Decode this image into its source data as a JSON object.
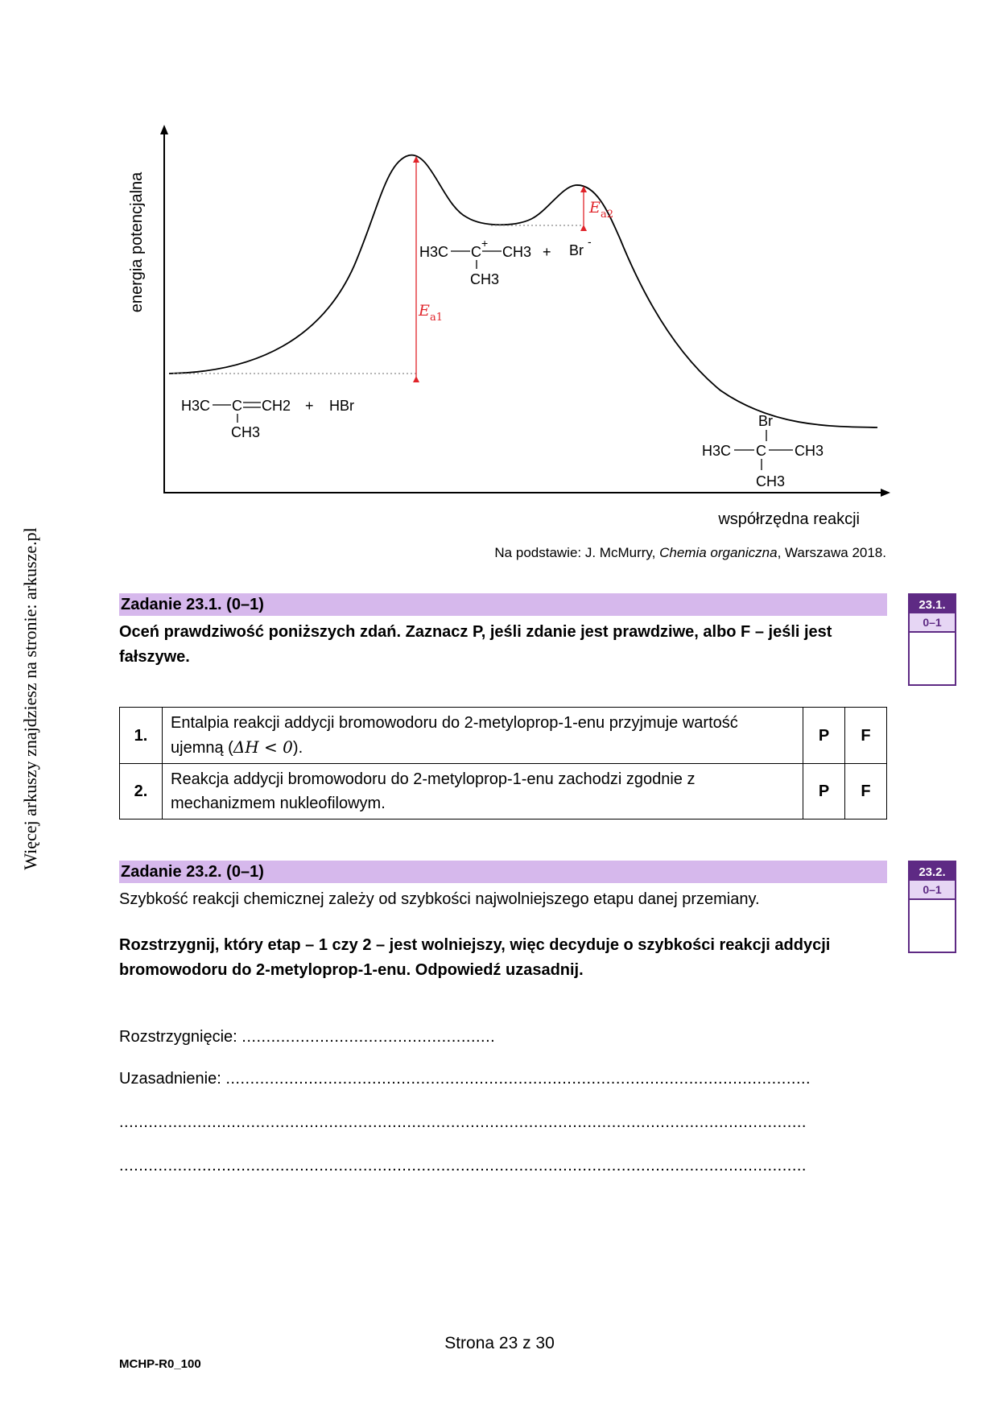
{
  "side_note": "Więcej arkuszy znajdziesz na stronie: arkusze.pl",
  "diagram": {
    "y_axis_label": "energia potencjalna",
    "x_axis_label": "współrzędna reakcji",
    "ea1_symbol": "E",
    "ea1_sub": "a1",
    "ea2_symbol": "E",
    "ea2_sub": "a2",
    "reactants": {
      "left_group": "H3C",
      "center": "C",
      "right_group": "CH2",
      "below": "CH3",
      "plus": "+",
      "reagent": "HBr"
    },
    "intermediate": {
      "left_group": "H3C",
      "center": "C",
      "charge": "+",
      "right_group": "CH3",
      "below": "CH3",
      "plus": "+",
      "anion": "Br",
      "anion_charge": "-"
    },
    "product": {
      "top": "Br",
      "left_group": "H3C",
      "center": "C",
      "right_group": "CH3",
      "below": "CH3"
    }
  },
  "source": {
    "prefix": "Na podstawie: J. McMurry, ",
    "title": "Chemia organiczna",
    "suffix": ", Warszawa 2018."
  },
  "task1": {
    "heading": "Zadanie 23.1. (0–1)",
    "instruction": "Oceń prawdziwość poniższych zdań. Zaznacz P, jeśli zdanie jest prawdziwe, albo F – jeśli jest fałszywe.",
    "score_number": "23.1.",
    "score_points": "0–1",
    "rows": [
      {
        "num": "1.",
        "text_main": "Entalpia reakcji addycji bromowodoru do 2-metyloprop-1-enu przyjmuje wartość ujemną (",
        "formula": "ΔH < 0",
        "text_end": ").",
        "p": "P",
        "f": "F"
      },
      {
        "num": "2.",
        "text_main": "Reakcja addycji bromowodoru do 2-metyloprop-1-enu zachodzi zgodnie z mechanizmem nukleofilowym.",
        "formula": "",
        "text_end": "",
        "p": "P",
        "f": "F"
      }
    ]
  },
  "task2": {
    "heading": "Zadanie 23.2. (0–1)",
    "statement": "Szybkość reakcji chemicznej zależy od szybkości najwolniejszego etapu danej przemiany.",
    "instruction": "Rozstrzygnij, który etap – 1 czy 2 – jest wolniejszy, więc decyduje o szybkości reakcji addycji bromowodoru do 2-metyloprop-1-enu. Odpowiedź uzasadnij.",
    "score_number": "23.2.",
    "score_points": "0–1",
    "decision_label": "Rozstrzygnięcie: ",
    "decision_dots": "....................................................",
    "justification_label": "Uzasadnienie: ",
    "justification_dots": "........................................................................................................................",
    "line2_dots": ".............................................................................................................................................",
    "line3_dots": "............................................................................................................................................."
  },
  "footer": {
    "page": "Strona 23 z 30",
    "code": "MCHP-R0_100"
  },
  "colors": {
    "accent_dark": "#5e2a84",
    "accent_light": "#d6b8ec",
    "energy_arrow": "#e0242a"
  }
}
